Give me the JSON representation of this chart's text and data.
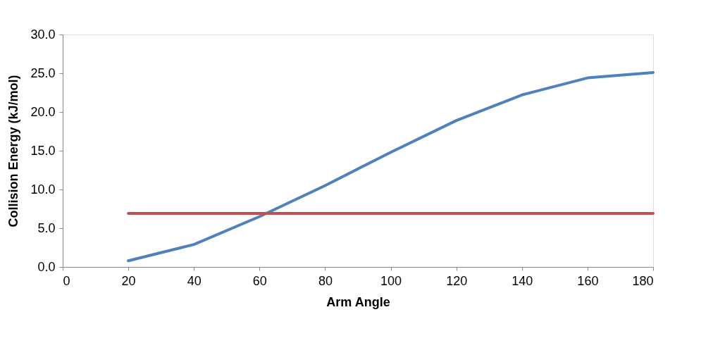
{
  "chart_data": {
    "type": "line",
    "xlabel": "Arm Angle",
    "ylabel": "Collision Energy (kJ/mol)",
    "x": [
      20,
      40,
      60,
      80,
      100,
      120,
      140,
      160,
      180
    ],
    "series": [
      {
        "color": "#4f81bd",
        "values": [
          0.8,
          2.9,
          6.5,
          10.5,
          14.8,
          18.9,
          22.2,
          24.4,
          25.1
        ]
      },
      {
        "color": "#c0504d",
        "values": [
          6.9,
          6.9,
          6.9,
          6.9,
          6.9,
          6.9,
          6.9,
          6.9,
          6.9
        ]
      }
    ],
    "xlim": [
      0,
      180
    ],
    "xticks": [
      0,
      20,
      40,
      60,
      80,
      100,
      120,
      140,
      160,
      180
    ],
    "ylim": [
      0,
      30
    ],
    "yticks": [
      {
        "value": 0,
        "label": "0.0"
      },
      {
        "value": 5,
        "label": "5.0"
      },
      {
        "value": 10,
        "label": "10.0"
      },
      {
        "value": 15,
        "label": "15.0"
      },
      {
        "value": 20,
        "label": "20.0"
      },
      {
        "value": 25,
        "label": "25.0"
      },
      {
        "value": 30,
        "label": "30.0"
      }
    ],
    "grid": false,
    "legend": false,
    "marker": "none",
    "line_style": "solid"
  }
}
